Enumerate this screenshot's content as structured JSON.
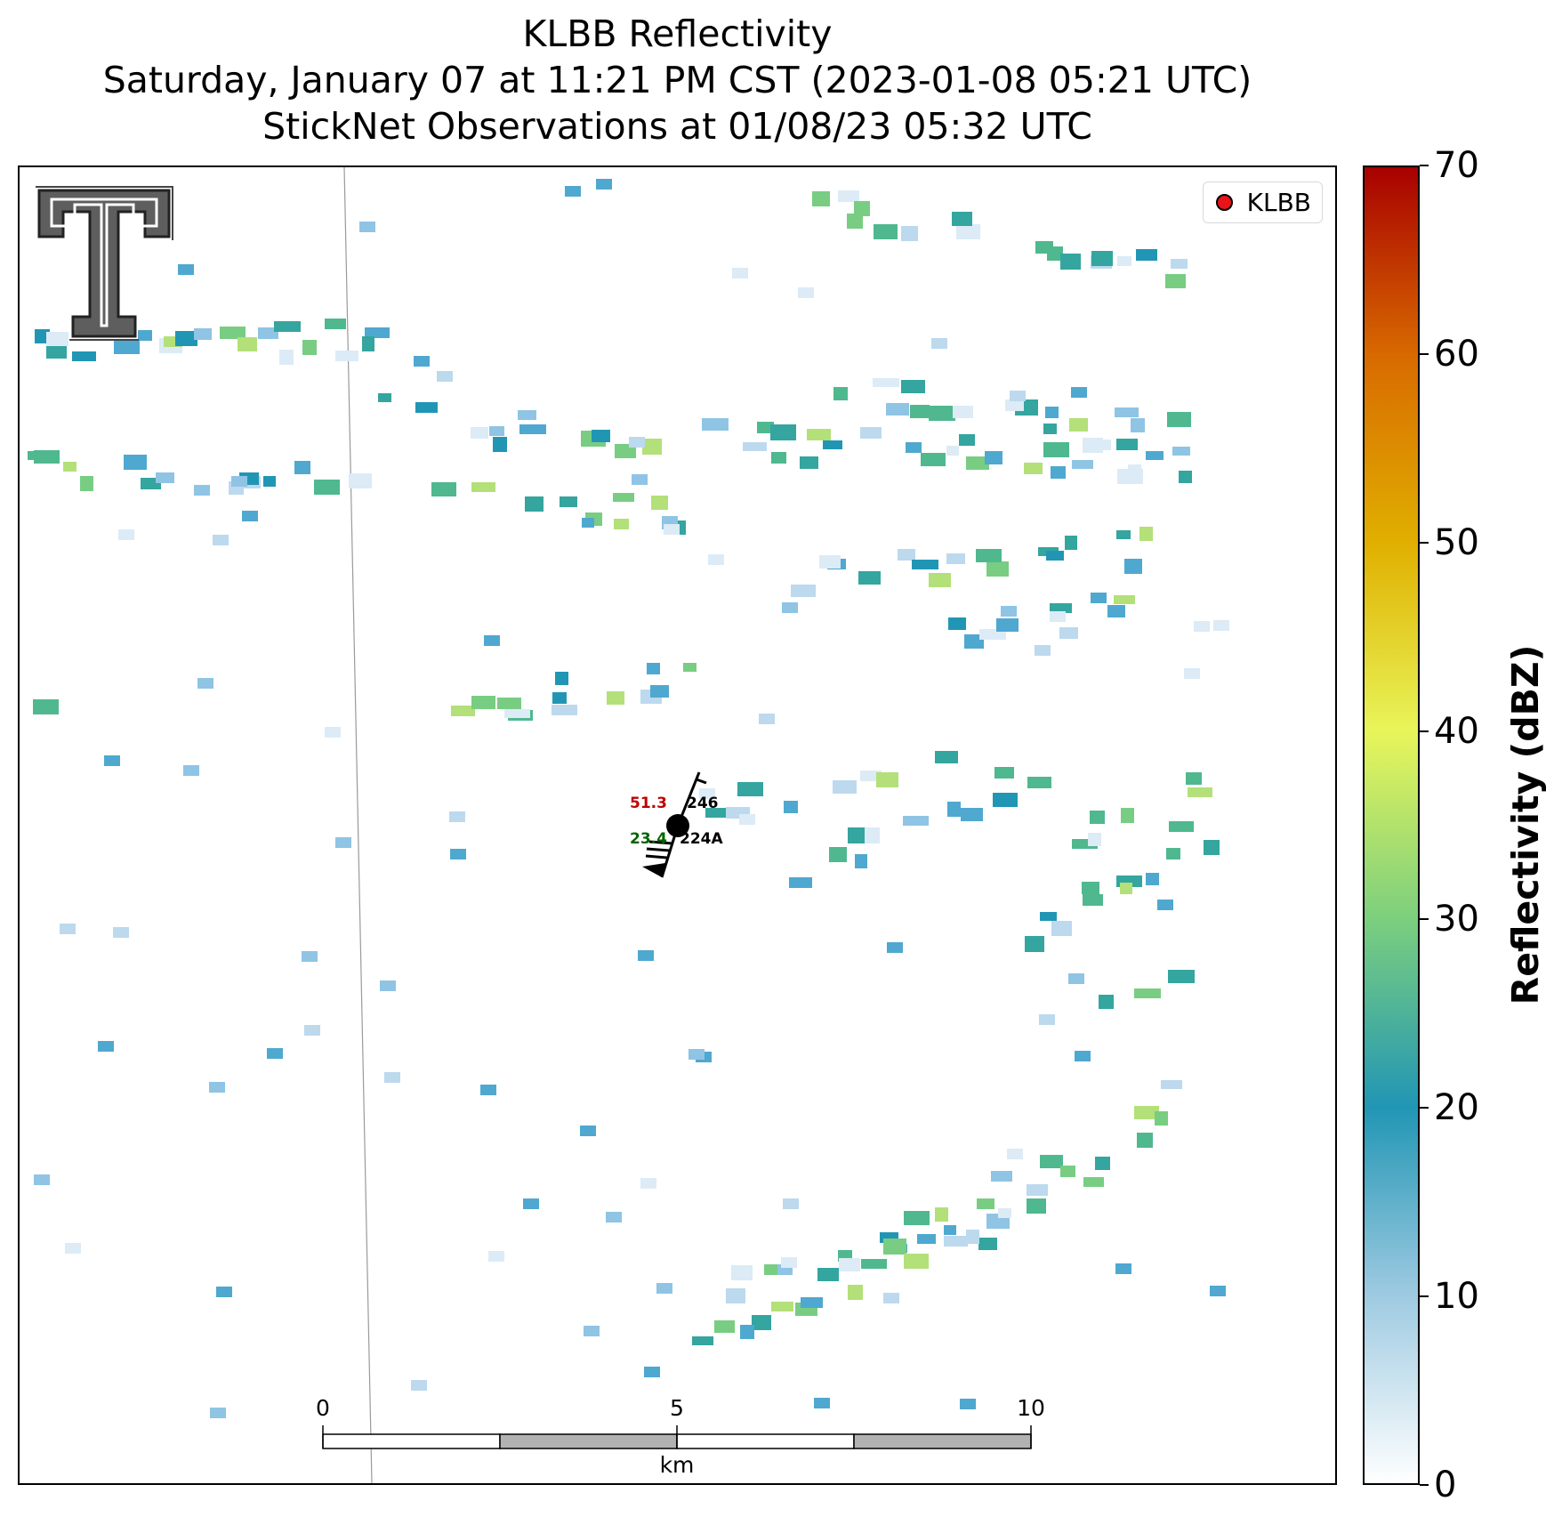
{
  "title": {
    "line1": "KLBB Reflectivity",
    "line2": "Saturday, January 07 at 11:21 PM CST (2023-01-08 05:21 UTC)",
    "line3": "StickNet Observations at 01/08/23 05:32 UTC"
  },
  "legend": {
    "label": "KLBB",
    "marker_color": "#e8141a"
  },
  "station": {
    "id": "224A",
    "temperature": "51.3",
    "dewpoint": "23.4",
    "pressure": "246",
    "temperature_color": "#c00000",
    "dewpoint_color": "#006400"
  },
  "scale_bar": {
    "ticks": [
      "0",
      "5",
      "10"
    ],
    "unit": "km"
  },
  "colorbar": {
    "title": "Reflectivity (dBZ)",
    "ticks": [
      "0",
      "10",
      "20",
      "30",
      "40",
      "50",
      "60",
      "70"
    ],
    "range": [
      0,
      70
    ],
    "colors": [
      "#ffffff",
      "#9ecae1",
      "#2196b4",
      "#7ccf7e",
      "#e8f55a",
      "#e0b000",
      "#d86a00",
      "#a80000"
    ]
  },
  "logo": {
    "name": "Texas Tech Double T"
  }
}
